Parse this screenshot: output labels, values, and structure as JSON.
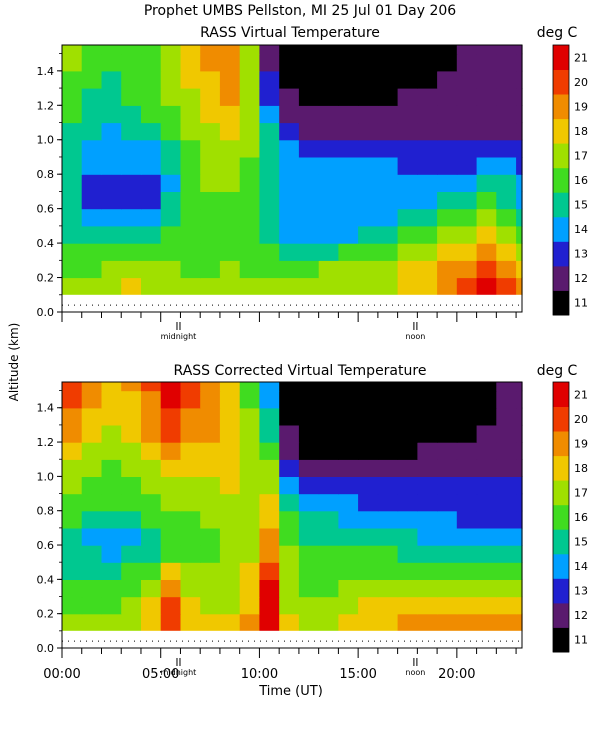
{
  "figure": {
    "title": "Prophet   UMBS Pellston, MI   25 Jul 01 Day 206",
    "y_label": "Altitude (km)",
    "x_label": "Time (UT)",
    "day_markers": [
      "midnight",
      "noon"
    ]
  },
  "chart_data": [
    {
      "type": "heatmap",
      "title": "RASS Virtual Temperature",
      "ylabel": "Altitude (km)",
      "ylim": [
        0.0,
        1.55
      ],
      "xlim": [
        0,
        23.3
      ],
      "y_ticks": [
        "0.0",
        "0.2",
        "0.4",
        "0.6",
        "0.8",
        "1.0",
        "1.2",
        "1.4"
      ],
      "x_tick_labels": [],
      "day_markers": [
        "midnight",
        "noon"
      ],
      "colorbar_label": "deg C",
      "x": [
        0,
        1,
        2,
        3,
        4,
        5,
        6,
        7,
        8,
        9,
        10,
        11,
        12,
        13,
        14,
        15,
        16,
        17,
        18,
        19,
        20,
        21,
        22,
        23
      ],
      "y": [
        0.1,
        0.2,
        0.3,
        0.4,
        0.5,
        0.6,
        0.7,
        0.8,
        0.9,
        1.0,
        1.1,
        1.2,
        1.3,
        1.4,
        1.5
      ],
      "values": [
        [
          17,
          17,
          17,
          18,
          17,
          17,
          17,
          17,
          17,
          17,
          17,
          17,
          17,
          17,
          17,
          17,
          17,
          18,
          18,
          19,
          20,
          21,
          20,
          19
        ],
        [
          16,
          16,
          17,
          17,
          17,
          17,
          16,
          16,
          17,
          16,
          16,
          16,
          16,
          17,
          17,
          17,
          17,
          18,
          18,
          19,
          19,
          20,
          19,
          18
        ],
        [
          16,
          16,
          16,
          16,
          16,
          16,
          16,
          16,
          16,
          16,
          16,
          15,
          15,
          15,
          16,
          16,
          16,
          17,
          17,
          18,
          18,
          19,
          18,
          17
        ],
        [
          15,
          15,
          15,
          15,
          15,
          16,
          16,
          16,
          16,
          16,
          15,
          14,
          14,
          14,
          14,
          15,
          15,
          16,
          16,
          17,
          17,
          18,
          17,
          16
        ],
        [
          15,
          14,
          14,
          14,
          14,
          15,
          16,
          16,
          16,
          16,
          15,
          14,
          14,
          14,
          14,
          14,
          14,
          15,
          15,
          16,
          16,
          17,
          16,
          15
        ],
        [
          15,
          13,
          13,
          13,
          13,
          15,
          16,
          16,
          16,
          16,
          15,
          14,
          14,
          14,
          14,
          14,
          14,
          14,
          14,
          15,
          15,
          16,
          15,
          14
        ],
        [
          15,
          13,
          13,
          13,
          13,
          14,
          16,
          17,
          17,
          16,
          15,
          14,
          14,
          14,
          14,
          14,
          14,
          14,
          14,
          14,
          14,
          15,
          15,
          14
        ],
        [
          15,
          14,
          14,
          14,
          14,
          15,
          16,
          17,
          17,
          16,
          15,
          14,
          14,
          14,
          14,
          14,
          14,
          13,
          13,
          13,
          13,
          14,
          14,
          13
        ],
        [
          15,
          14,
          14,
          14,
          14,
          15,
          16,
          17,
          17,
          17,
          15,
          14,
          13,
          13,
          13,
          13,
          13,
          13,
          13,
          13,
          13,
          13,
          13,
          13
        ],
        [
          15,
          15,
          14,
          15,
          15,
          16,
          17,
          17,
          18,
          17,
          15,
          13,
          12,
          12,
          12,
          12,
          12,
          12,
          12,
          12,
          12,
          12,
          12,
          12
        ],
        [
          16,
          15,
          15,
          15,
          16,
          16,
          17,
          18,
          18,
          17,
          14,
          12,
          12,
          12,
          12,
          12,
          12,
          12,
          12,
          12,
          12,
          12,
          12,
          12
        ],
        [
          16,
          15,
          15,
          16,
          16,
          17,
          17,
          18,
          19,
          17,
          13,
          12,
          11,
          11,
          11,
          11,
          11,
          12,
          12,
          12,
          12,
          12,
          12,
          12
        ],
        [
          16,
          16,
          15,
          16,
          16,
          17,
          18,
          18,
          19,
          17,
          13,
          11,
          11,
          11,
          11,
          11,
          11,
          11,
          11,
          12,
          12,
          12,
          12,
          12
        ],
        [
          17,
          16,
          16,
          16,
          16,
          17,
          18,
          19,
          19,
          17,
          12,
          11,
          11,
          11,
          11,
          11,
          11,
          11,
          11,
          11,
          12,
          12,
          12,
          12
        ],
        [
          17,
          16,
          16,
          16,
          16,
          17,
          18,
          19,
          19,
          17,
          12,
          11,
          11,
          11,
          11,
          11,
          11,
          11,
          11,
          11,
          12,
          12,
          12,
          12
        ]
      ]
    },
    {
      "type": "heatmap",
      "title": "RASS Corrected Virtual Temperature",
      "ylabel": "Altitude (km)",
      "xlabel": "Time (UT)",
      "ylim": [
        0.0,
        1.55
      ],
      "xlim": [
        0,
        23.3
      ],
      "y_ticks": [
        "0.0",
        "0.2",
        "0.4",
        "0.6",
        "0.8",
        "1.0",
        "1.2",
        "1.4"
      ],
      "x_tick_labels": [
        "00:00",
        "05:00",
        "10:00",
        "15:00",
        "20:00"
      ],
      "day_markers": [
        "midnight",
        "noon"
      ],
      "colorbar_label": "deg C",
      "x": [
        0,
        1,
        2,
        3,
        4,
        5,
        6,
        7,
        8,
        9,
        10,
        11,
        12,
        13,
        14,
        15,
        16,
        17,
        18,
        19,
        20,
        21,
        22,
        23
      ],
      "y": [
        0.1,
        0.2,
        0.3,
        0.4,
        0.5,
        0.6,
        0.7,
        0.8,
        0.9,
        1.0,
        1.1,
        1.2,
        1.3,
        1.4,
        1.5
      ],
      "values": [
        [
          17,
          17,
          17,
          17,
          18,
          20,
          18,
          18,
          18,
          19,
          21,
          18,
          17,
          17,
          18,
          18,
          18,
          19,
          19,
          19,
          19,
          19,
          19,
          19
        ],
        [
          16,
          16,
          16,
          17,
          18,
          20,
          18,
          17,
          17,
          18,
          21,
          17,
          17,
          17,
          17,
          18,
          18,
          18,
          18,
          18,
          18,
          18,
          18,
          18
        ],
        [
          16,
          16,
          16,
          16,
          17,
          19,
          17,
          17,
          17,
          18,
          21,
          17,
          16,
          16,
          17,
          17,
          17,
          17,
          17,
          17,
          17,
          17,
          17,
          17
        ],
        [
          15,
          15,
          15,
          16,
          16,
          18,
          17,
          17,
          17,
          18,
          20,
          17,
          16,
          16,
          16,
          16,
          16,
          16,
          16,
          16,
          16,
          16,
          16,
          16
        ],
        [
          15,
          15,
          14,
          15,
          15,
          16,
          16,
          16,
          17,
          17,
          19,
          17,
          16,
          16,
          16,
          16,
          16,
          15,
          15,
          15,
          15,
          15,
          15,
          15
        ],
        [
          15,
          14,
          14,
          14,
          15,
          16,
          16,
          16,
          17,
          17,
          19,
          16,
          15,
          15,
          15,
          15,
          15,
          15,
          14,
          14,
          14,
          14,
          14,
          14
        ],
        [
          16,
          15,
          15,
          15,
          16,
          16,
          16,
          17,
          17,
          17,
          18,
          16,
          15,
          15,
          14,
          14,
          14,
          14,
          14,
          14,
          13,
          13,
          13,
          13
        ],
        [
          16,
          16,
          16,
          16,
          16,
          17,
          17,
          17,
          17,
          17,
          18,
          15,
          14,
          14,
          14,
          13,
          13,
          13,
          13,
          13,
          13,
          13,
          13,
          13
        ],
        [
          17,
          16,
          16,
          16,
          17,
          17,
          17,
          17,
          18,
          17,
          17,
          14,
          13,
          13,
          13,
          13,
          13,
          13,
          13,
          13,
          13,
          13,
          13,
          13
        ],
        [
          17,
          17,
          16,
          17,
          17,
          18,
          18,
          18,
          18,
          17,
          17,
          13,
          12,
          12,
          12,
          12,
          12,
          12,
          12,
          12,
          12,
          12,
          12,
          12
        ],
        [
          18,
          17,
          17,
          17,
          18,
          19,
          18,
          18,
          18,
          17,
          16,
          12,
          11,
          11,
          11,
          11,
          11,
          11,
          12,
          12,
          12,
          12,
          12,
          12
        ],
        [
          19,
          18,
          17,
          18,
          19,
          20,
          19,
          19,
          18,
          17,
          15,
          12,
          11,
          11,
          11,
          11,
          11,
          11,
          11,
          11,
          11,
          12,
          12,
          12
        ],
        [
          19,
          18,
          18,
          18,
          19,
          20,
          19,
          19,
          18,
          17,
          15,
          11,
          11,
          11,
          11,
          11,
          11,
          11,
          11,
          11,
          11,
          11,
          12,
          12
        ],
        [
          20,
          19,
          18,
          18,
          19,
          21,
          20,
          19,
          18,
          16,
          14,
          11,
          11,
          11,
          11,
          11,
          11,
          11,
          11,
          11,
          11,
          11,
          12,
          12
        ],
        [
          20,
          19,
          18,
          19,
          20,
          21,
          20,
          19,
          18,
          16,
          14,
          11,
          11,
          11,
          11,
          11,
          11,
          11,
          11,
          11,
          11,
          11,
          12,
          12
        ]
      ]
    }
  ],
  "colorbar": {
    "unit": "deg C",
    "levels": [
      "11",
      "12",
      "13",
      "14",
      "15",
      "16",
      "17",
      "18",
      "19",
      "20",
      "21"
    ],
    "colors": [
      "#000000",
      "#5a1a6e",
      "#2020d0",
      "#00a0ff",
      "#00c890",
      "#40dc20",
      "#a0e000",
      "#f0c800",
      "#f08c00",
      "#f03c00",
      "#e00000"
    ]
  }
}
